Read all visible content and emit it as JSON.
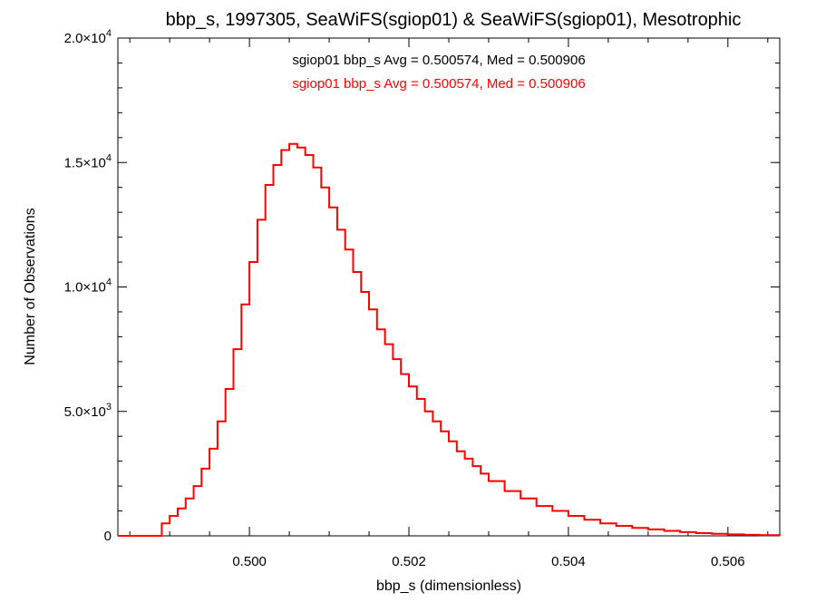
{
  "chart_data": {
    "type": "line",
    "style": "histogram-step",
    "title": "bbp_s, 1997305, SeaWiFS(sgiop01) & SeaWiFS(sgiop01), Mesotrophic",
    "xlabel": "bbp_s (dimensionless)",
    "ylabel": "Number of Observations",
    "xlim": [
      0.49835,
      0.50665
    ],
    "ylim": [
      0,
      20000
    ],
    "grid": false,
    "x_ticks": [
      {
        "value": 0.5,
        "label": "0.500"
      },
      {
        "value": 0.502,
        "label": "0.502"
      },
      {
        "value": 0.504,
        "label": "0.504"
      },
      {
        "value": 0.506,
        "label": "0.506"
      }
    ],
    "y_ticks": [
      {
        "value": 0,
        "mantissa": "0",
        "exponent": ""
      },
      {
        "value": 5000,
        "mantissa": "5.0×10",
        "exponent": "3"
      },
      {
        "value": 10000,
        "mantissa": "1.0×10",
        "exponent": "4"
      },
      {
        "value": 15000,
        "mantissa": "1.5×10",
        "exponent": "4"
      },
      {
        "value": 20000,
        "mantissa": "2.0×10",
        "exponent": "4"
      }
    ],
    "annotations": [
      {
        "text": "sgiop01 bbp_s Avg = 0.500574, Med = 0.500906",
        "color": "#000000"
      },
      {
        "text": "sgiop01 bbp_s Avg = 0.500574, Med = 0.500906",
        "color": "#ff0000"
      }
    ],
    "series": [
      {
        "color": "#ff0000",
        "x": [
          0.49835,
          0.4988,
          0.4989,
          0.499,
          0.4991,
          0.4992,
          0.4993,
          0.4994,
          0.4995,
          0.4996,
          0.4997,
          0.4998,
          0.4999,
          0.5,
          0.5001,
          0.5002,
          0.5003,
          0.5004,
          0.5005,
          0.5006,
          0.5007,
          0.5008,
          0.5009,
          0.501,
          0.5011,
          0.5012,
          0.5013,
          0.5014,
          0.5015,
          0.5016,
          0.5017,
          0.5018,
          0.5019,
          0.502,
          0.5021,
          0.5022,
          0.5023,
          0.5024,
          0.5025,
          0.5026,
          0.5027,
          0.5028,
          0.5029,
          0.503,
          0.5032,
          0.5034,
          0.5036,
          0.5038,
          0.504,
          0.5042,
          0.5044,
          0.5046,
          0.5048,
          0.505,
          0.5052,
          0.5054,
          0.5056,
          0.5058,
          0.506,
          0.5062,
          0.5064,
          0.50665
        ],
        "values": [
          0,
          0,
          500,
          800,
          1100,
          1500,
          2000,
          2700,
          3500,
          4600,
          5900,
          7500,
          9300,
          11000,
          12700,
          14100,
          14900,
          15500,
          15750,
          15600,
          15300,
          14800,
          14000,
          13200,
          12300,
          11500,
          10600,
          9800,
          9100,
          8300,
          7700,
          7100,
          6500,
          6000,
          5500,
          5000,
          4600,
          4200,
          3800,
          3400,
          3100,
          2800,
          2500,
          2200,
          1800,
          1500,
          1200,
          1000,
          800,
          650,
          500,
          400,
          320,
          260,
          200,
          150,
          110,
          80,
          60,
          40,
          25,
          10
        ]
      }
    ]
  }
}
